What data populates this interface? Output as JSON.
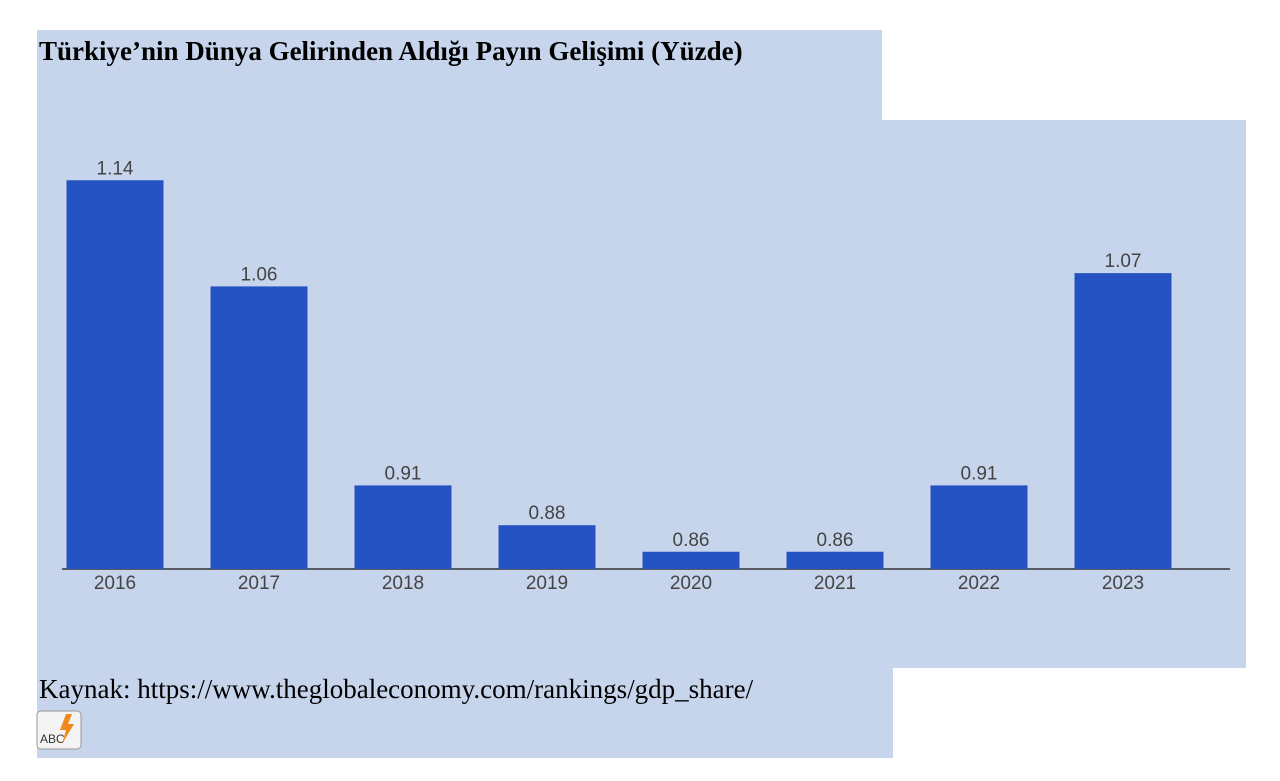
{
  "chart_data": {
    "type": "bar",
    "title": "Türkiye’nin Dünya Gelirinden Aldığı Payın Gelişimi (Yüzde)",
    "categories": [
      "2016",
      "2017",
      "2018",
      "2019",
      "2020",
      "2021",
      "2022",
      "2023"
    ],
    "values": [
      1.14,
      1.06,
      0.91,
      0.88,
      0.86,
      0.86,
      0.91,
      1.07
    ],
    "color": "#2552c2",
    "ylim": [
      0.847,
      1.15
    ],
    "source": "Kaynak: https://www.theglobaleconomy.com/rankings/gdp_share/"
  }
}
